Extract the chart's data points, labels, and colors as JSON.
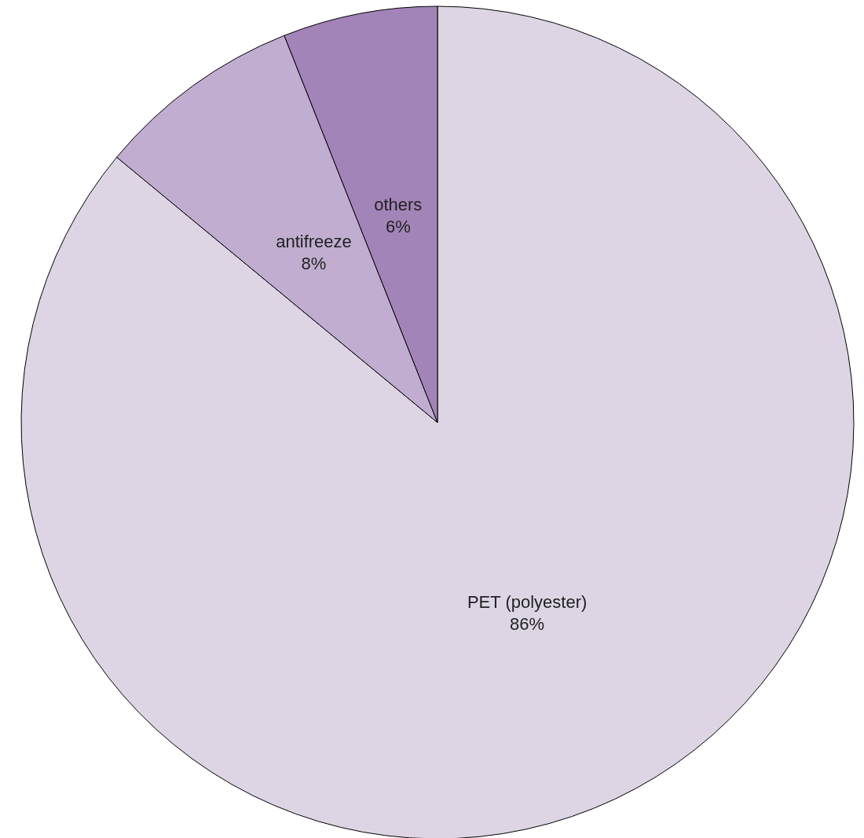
{
  "chart_data": {
    "type": "pie",
    "categories": [
      "PET (polyester)",
      "antifreeze",
      "others"
    ],
    "values": [
      86,
      8,
      6
    ],
    "colors": [
      "#ddd5e4",
      "#c0adcf",
      "#a384b8"
    ],
    "value_labels": [
      "86%",
      "8%",
      "6%"
    ]
  }
}
